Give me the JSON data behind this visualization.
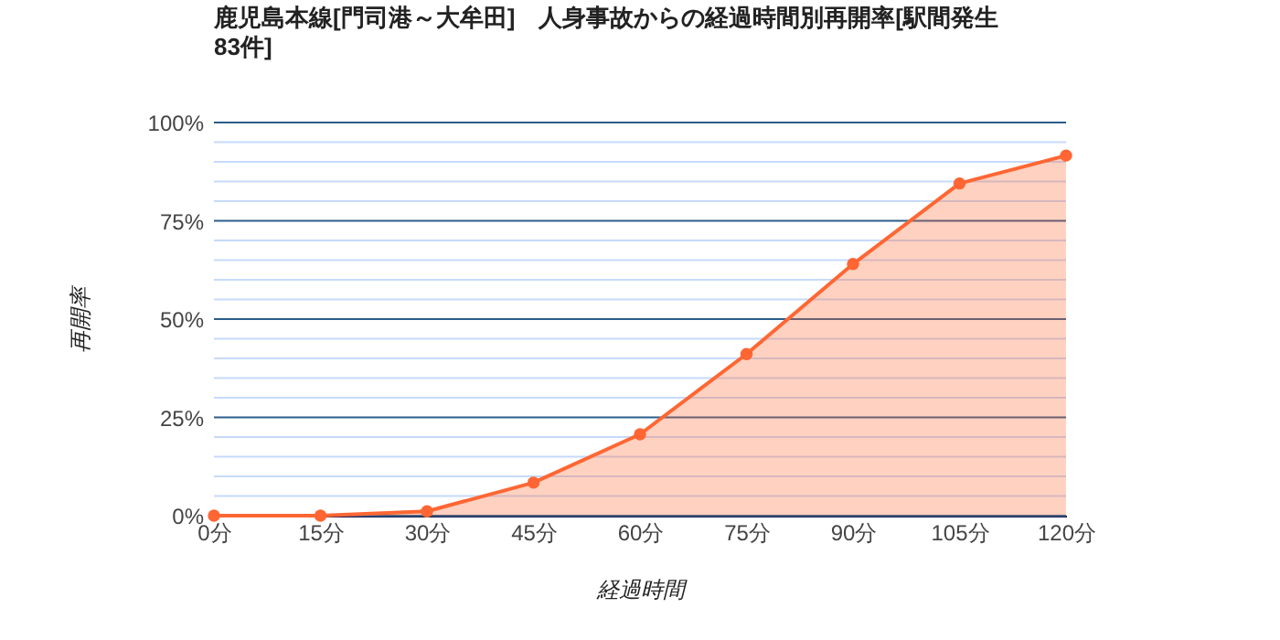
{
  "chart_data": {
    "type": "area",
    "title": "鹿児島本線[門司港～大牟田]　人身事故からの経過時間別再開率[駅間発生83件]",
    "xlabel": "経過時間",
    "ylabel": "再開率",
    "categories": [
      "0分",
      "15分",
      "30分",
      "45分",
      "60分",
      "75分",
      "90分",
      "105分",
      "120分"
    ],
    "series": [
      {
        "color": "#ff6633",
        "values": [
          0,
          0,
          1.1,
          8.4,
          20.7,
          41.1,
          64.0,
          84.5,
          91.6
        ]
      }
    ],
    "ylim": [
      0,
      100
    ],
    "yticks": [
      {
        "value": 0,
        "label": "0%"
      },
      {
        "value": 5,
        "label": null
      },
      {
        "value": 10,
        "label": null
      },
      {
        "value": 15,
        "label": null
      },
      {
        "value": 20,
        "label": null
      },
      {
        "value": 25,
        "label": "25%"
      },
      {
        "value": 30,
        "label": null
      },
      {
        "value": 35,
        "label": null
      },
      {
        "value": 40,
        "label": null
      },
      {
        "value": 45,
        "label": null
      },
      {
        "value": 50,
        "label": "50%"
      },
      {
        "value": 55,
        "label": null
      },
      {
        "value": 60,
        "label": null
      },
      {
        "value": 65,
        "label": null
      },
      {
        "value": 70,
        "label": null
      },
      {
        "value": 75,
        "label": "75%"
      },
      {
        "value": 80,
        "label": null
      },
      {
        "value": 85,
        "label": null
      },
      {
        "value": 90,
        "label": null
      },
      {
        "value": 95,
        "label": null
      },
      {
        "value": 100,
        "label": "100%"
      }
    ],
    "grid": true,
    "marker": "circle"
  }
}
